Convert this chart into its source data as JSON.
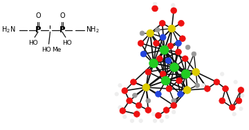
{
  "background_color": "#ffffff",
  "figsize": [
    3.6,
    1.89
  ],
  "dpi": 100,
  "formula": {
    "H2N_left": "H₂N",
    "NH2_right": "NH₂",
    "P_left": "P",
    "P_right": "P",
    "O_left": "O",
    "O_right": "O",
    "HO_left": "HO",
    "HO_right": "HO",
    "HO_mid": "HO",
    "Me": "Me"
  },
  "atom_colors": {
    "metal": "#22cc22",
    "P": "#cccc00",
    "O": "#ee1111",
    "N": "#2222ee",
    "C": "#888888",
    "H": "#cccccc",
    "bond": "#111111"
  }
}
